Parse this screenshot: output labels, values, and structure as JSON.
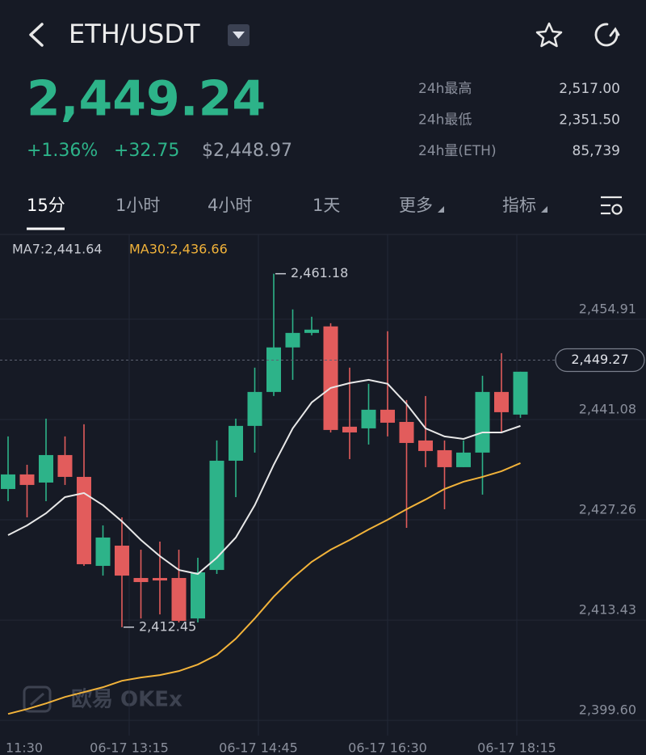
{
  "header": {
    "pair": "ETH/USDT"
  },
  "ticker": {
    "price": "2,449.24",
    "change_pct": "+1.36%",
    "change": "+32.75",
    "usd": "$2,448.97"
  },
  "stats": [
    {
      "label": "24h最高",
      "value": "2,517.00"
    },
    {
      "label": "24h最低",
      "value": "2,351.50"
    },
    {
      "label": "24h量(ETH)",
      "value": "85,739"
    }
  ],
  "tabs": [
    "15分",
    "1小时",
    "4小时",
    "1天",
    "更多",
    "指标"
  ],
  "chart": {
    "ma7_label": "MA7:2,441.64",
    "ma30_label": "MA30:2,436.66",
    "ylim": [
      2397.5,
      2466.6
    ],
    "yticks": [
      {
        "value": 2454.91,
        "label": "2,454.91"
      },
      {
        "value": 2441.08,
        "label": "2,441.08"
      },
      {
        "value": 2427.26,
        "label": "2,427.26"
      },
      {
        "value": 2413.43,
        "label": "2,413.43"
      },
      {
        "value": 2399.6,
        "label": "2,399.60"
      }
    ],
    "xlabels": [
      "11:30",
      "06-17 13:15",
      "06-17 14:45",
      "06-17 16:30",
      "06-17 18:15"
    ],
    "current_price": {
      "value": 2449.27,
      "label": "2,449.27"
    },
    "high": {
      "value": 2461.18,
      "label": "2,461.18"
    },
    "low": {
      "value": 2412.45,
      "label": "2,412.45"
    },
    "watermark": "欧易 OKEx",
    "up_color": "#2db389",
    "down_color": "#e25c5c",
    "ma7_color": "#e8e8e8",
    "ma30_color": "#f2b33a",
    "candles": [
      [
        2431.5,
        2438.75,
        2429.82,
        2433.51
      ],
      [
        2433.51,
        2434.84,
        2427.59,
        2432.06
      ],
      [
        2432.39,
        2441.2,
        2429.82,
        2436.18
      ],
      [
        2436.18,
        2438.75,
        2432.06,
        2433.17
      ],
      [
        2433.17,
        2440.42,
        2420.9,
        2421.13
      ],
      [
        2420.9,
        2426.48,
        2419.56,
        2424.81
      ],
      [
        2423.69,
        2427.59,
        2412.45,
        2419.56
      ],
      [
        2419.23,
        2423.13,
        2413.65,
        2418.67
      ],
      [
        2419.23,
        2424.25,
        2414.21,
        2418.89
      ],
      [
        2419.23,
        2423.13,
        2413.1,
        2413.32
      ],
      [
        2413.65,
        2422.02,
        2413.1,
        2420.01
      ],
      [
        2420.34,
        2438.19,
        2419.79,
        2435.4
      ],
      [
        2435.4,
        2441.2,
        2430.38,
        2440.2
      ],
      [
        2440.2,
        2448.23,
        2436.52,
        2444.88
      ],
      [
        2444.88,
        2461.18,
        2444.32,
        2451.02
      ],
      [
        2451.02,
        2456.26,
        2446.55,
        2453.02
      ],
      [
        2453.02,
        2455.25,
        2452.69,
        2453.47
      ],
      [
        2453.92,
        2454.36,
        2439.3,
        2439.64
      ],
      [
        2440.09,
        2448.23,
        2435.62,
        2439.3
      ],
      [
        2439.86,
        2446.0,
        2437.63,
        2442.43
      ],
      [
        2442.43,
        2453.25,
        2438.75,
        2440.64
      ],
      [
        2440.75,
        2443.77,
        2426.14,
        2437.85
      ],
      [
        2438.19,
        2444.32,
        2434.51,
        2436.74
      ],
      [
        2436.85,
        2438.19,
        2428.71,
        2434.51
      ],
      [
        2434.51,
        2438.19,
        2434.51,
        2436.52
      ],
      [
        2436.52,
        2447.11,
        2430.72,
        2444.88
      ],
      [
        2444.88,
        2450.23,
        2439.3,
        2442.09
      ],
      [
        2441.76,
        2447.67,
        2441.31,
        2447.67
      ]
    ],
    "ma7": [
      2425.14,
      2426.48,
      2428.15,
      2430.38,
      2430.94,
      2429.27,
      2427.04,
      2424.47,
      2422.24,
      2420.34,
      2419.79,
      2422.02,
      2424.81,
      2429.27,
      2434.84,
      2439.86,
      2443.43,
      2445.44,
      2446.11,
      2446.55,
      2446.0,
      2443.21,
      2439.86,
      2438.75,
      2438.41,
      2439.3,
      2439.3,
      2440.2
    ],
    "ma30": [
      2400.49,
      2401.16,
      2401.94,
      2402.83,
      2403.5,
      2404.17,
      2405.06,
      2405.51,
      2405.85,
      2406.4,
      2407.3,
      2408.63,
      2410.86,
      2413.65,
      2416.66,
      2419.23,
      2421.46,
      2423.13,
      2424.47,
      2425.92,
      2427.26,
      2428.71,
      2430.05,
      2431.5,
      2432.5,
      2433.17,
      2433.95,
      2435.07
    ]
  }
}
